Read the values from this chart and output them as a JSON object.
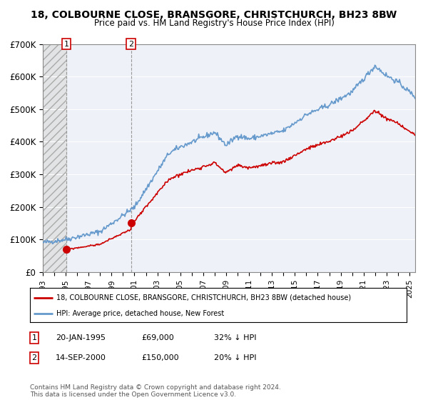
{
  "title": "18, COLBOURNE CLOSE, BRANSGORE, CHRISTCHURCH, BH23 8BW",
  "subtitle": "Price paid vs. HM Land Registry's House Price Index (HPI)",
  "ylim": [
    0,
    700000
  ],
  "yticks": [
    0,
    100000,
    200000,
    300000,
    400000,
    500000,
    600000,
    700000
  ],
  "ytick_labels": [
    "£0",
    "£100K",
    "£200K",
    "£300K",
    "£400K",
    "£500K",
    "£600K",
    "£700K"
  ],
  "sale1_date": 1995.055,
  "sale1_price": 69000,
  "sale2_date": 2000.71,
  "sale2_price": 150000,
  "legend_line1": "18, COLBOURNE CLOSE, BRANSGORE, CHRISTCHURCH, BH23 8BW (detached house)",
  "legend_line2": "HPI: Average price, detached house, New Forest",
  "footer": "Contains HM Land Registry data © Crown copyright and database right 2024.\nThis data is licensed under the Open Government Licence v3.0.",
  "red_color": "#cc0000",
  "blue_color": "#6699cc",
  "background_color": "#eef2f8"
}
